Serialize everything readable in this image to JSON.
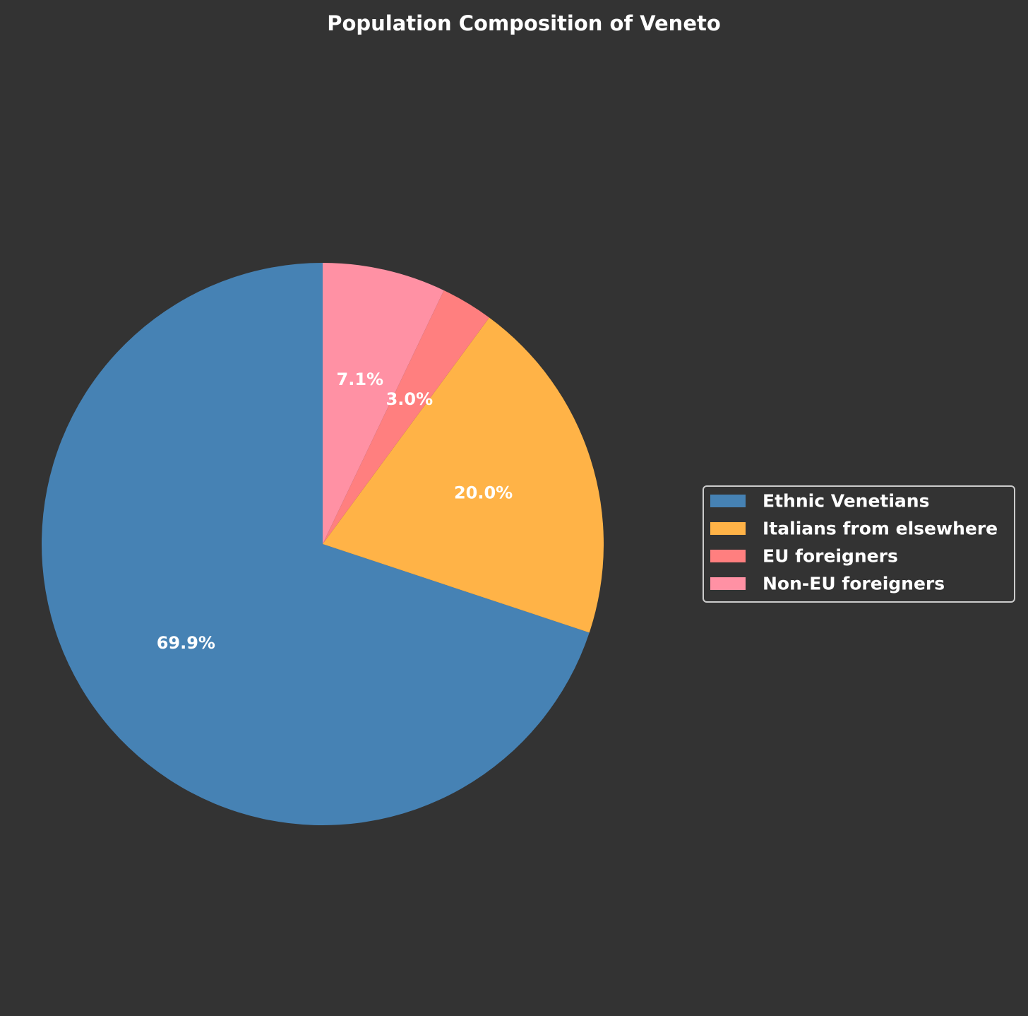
{
  "chart_data": {
    "type": "pie",
    "title": "Population Composition of Veneto",
    "categories": [
      "Ethnic Venetians",
      "Italians from elsewhere",
      "EU foreigners",
      "Non-EU foreigners"
    ],
    "values": [
      69.9,
      20.0,
      3.0,
      7.1
    ],
    "labels": [
      "69.9%",
      "20.0%",
      "3.0%",
      "7.1%"
    ],
    "colors": [
      "#4682B4",
      "#FFB347",
      "#FF7F7F",
      "#FF91A4"
    ],
    "start_angle_deg": 90,
    "direction": "counterclockwise",
    "legend": {
      "placement": "right",
      "entries": [
        "Ethnic Venetians",
        "Italians from elsewhere",
        "EU foreigners",
        "Non-EU foreigners"
      ]
    }
  },
  "theme": {
    "background": "#333333",
    "text_color": "#ffffff",
    "legend_border": "#cccccc"
  }
}
